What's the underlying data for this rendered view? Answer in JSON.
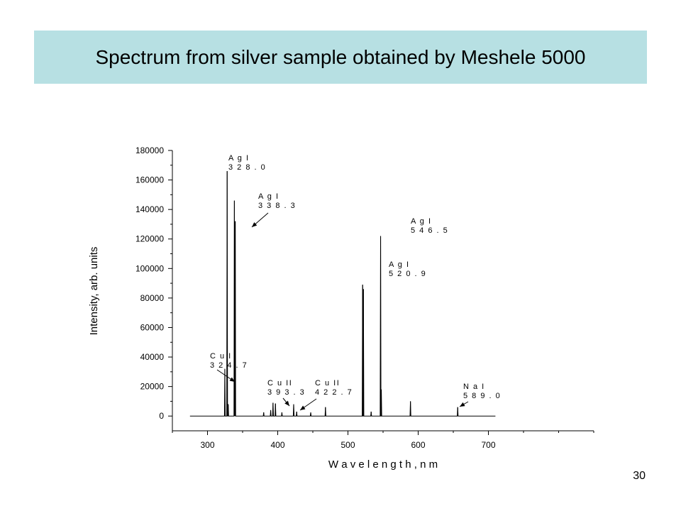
{
  "slide": {
    "title": "Spectrum from silver sample obtained by Meshele 5000",
    "slide_number": "30"
  },
  "colors": {
    "banner": "#b7e0e3",
    "plot_line": "#000000"
  },
  "chart_data": {
    "type": "line",
    "title": "",
    "xlabel": "W a v e l e n g t h ,  n m",
    "ylabel": "Intensity, arb. units",
    "xlim": [
      250,
      850
    ],
    "ylim": [
      -10000,
      180000
    ],
    "xticks": [
      300,
      400,
      500,
      600,
      700
    ],
    "xtick_labels": [
      "300",
      "400",
      "500",
      "600",
      "700"
    ],
    "yticks": [
      0,
      20000,
      40000,
      60000,
      80000,
      100000,
      120000,
      140000,
      160000,
      180000
    ],
    "ytick_labels": [
      "0",
      "20000",
      "40000",
      "60000",
      "80000",
      "100000",
      "120000",
      "140000",
      "160000",
      "180000"
    ],
    "series": [
      {
        "baseline_range": [
          275,
          710
        ],
        "peaks": [
          {
            "x": 324.7,
            "y": 32000
          },
          {
            "x": 328.0,
            "y": 166000
          },
          {
            "x": 329.5,
            "y": 8000
          },
          {
            "x": 338.3,
            "y": 146000
          },
          {
            "x": 339.5,
            "y": 132000
          },
          {
            "x": 380.0,
            "y": 2500
          },
          {
            "x": 390.0,
            "y": 4000
          },
          {
            "x": 393.3,
            "y": 9000
          },
          {
            "x": 396.8,
            "y": 8500
          },
          {
            "x": 406.0,
            "y": 2500
          },
          {
            "x": 422.7,
            "y": 8000
          },
          {
            "x": 427.0,
            "y": 3000
          },
          {
            "x": 447.0,
            "y": 2500
          },
          {
            "x": 468.0,
            "y": 6000
          },
          {
            "x": 520.9,
            "y": 89000
          },
          {
            "x": 522.0,
            "y": 86000
          },
          {
            "x": 533.0,
            "y": 3000
          },
          {
            "x": 546.5,
            "y": 122000
          },
          {
            "x": 547.5,
            "y": 18000
          },
          {
            "x": 589.0,
            "y": 10000
          },
          {
            "x": 656.3,
            "y": 6000
          }
        ]
      }
    ],
    "annotations": [
      {
        "line1": "A g  I",
        "line2": "3 2 8 . 0",
        "x": 328.0,
        "y": 166000
      },
      {
        "line1": "A g  I",
        "line2": "3 3 8 . 3",
        "x": 338.3,
        "y": 132000
      },
      {
        "line1": "C u  I",
        "line2": "3 2 4 . 7",
        "x": 324.7,
        "y": 22000
      },
      {
        "line1": "C u  II",
        "line2": "3 9 3 . 3",
        "x": 393.3,
        "y": 8000
      },
      {
        "line1": "C u  II",
        "line2": "4 2 2 . 7",
        "x": 422.7,
        "y": 5000
      },
      {
        "line1": "A g  I",
        "line2": "5 2 0 . 9",
        "x": 520.9,
        "y": 89000
      },
      {
        "line1": "A g  I",
        "line2": "5 4 6 . 5",
        "x": 546.5,
        "y": 122000
      },
      {
        "line1": "N a  I",
        "line2": "5 8 9 . 0",
        "x": 589.0,
        "y": 3000
      }
    ],
    "grid": false,
    "legend": "none"
  }
}
